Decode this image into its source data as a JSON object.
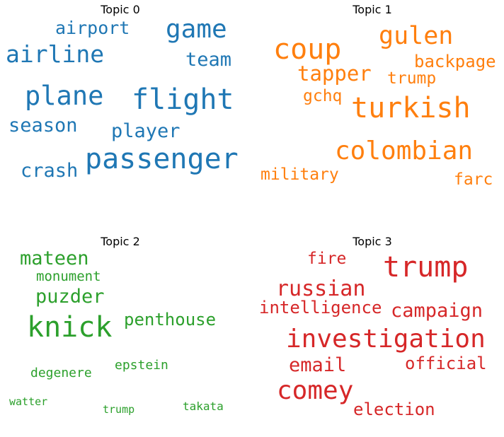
{
  "chart_data": [
    {
      "type": "wordcloud",
      "title": "Topic 0",
      "color": "#1f77b4",
      "words": [
        "flight",
        "passenger",
        "plane",
        "game",
        "airline",
        "airport",
        "team",
        "player",
        "season",
        "crash"
      ]
    },
    {
      "type": "wordcloud",
      "title": "Topic 1",
      "color": "#ff7f0e",
      "words": [
        "turkish",
        "coup",
        "colombian",
        "gulen",
        "tapper",
        "backpage",
        "trump",
        "gchq",
        "military",
        "farc"
      ]
    },
    {
      "type": "wordcloud",
      "title": "Topic 2",
      "color": "#2ca02c",
      "words": [
        "knick",
        "mateen",
        "puzder",
        "penthouse",
        "monument",
        "epstein",
        "degenere",
        "watter",
        "trump",
        "takata"
      ]
    },
    {
      "type": "wordcloud",
      "title": "Topic 3",
      "color": "#d62728",
      "words": [
        "investigation",
        "trump",
        "comey",
        "russian",
        "campaign",
        "intelligence",
        "email",
        "official",
        "fire",
        "election"
      ]
    }
  ]
}
